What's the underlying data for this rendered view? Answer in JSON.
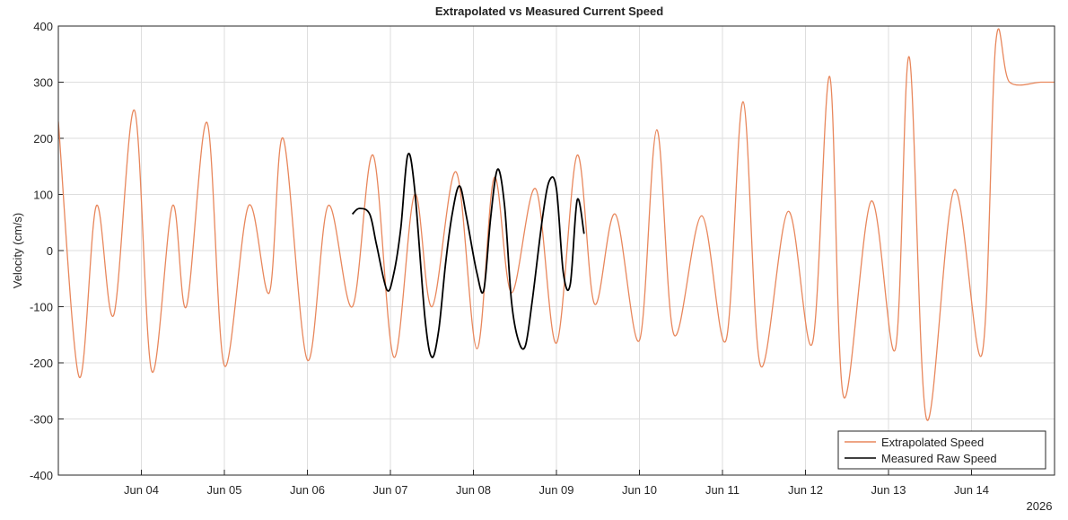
{
  "chart_data": {
    "type": "line",
    "title": "Extrapolated vs Measured Current Speed",
    "ylabel": "Velocity (cm/s)",
    "xlabel": "",
    "year_label": "2026",
    "ylim": [
      -400,
      400
    ],
    "yticks": [
      -400,
      -300,
      -200,
      -100,
      0,
      100,
      200,
      300,
      400
    ],
    "xlim": [
      "2026-06-03 00:00",
      "2026-06-15 00:00"
    ],
    "xticks": [
      "Jun 04",
      "Jun 05",
      "Jun 06",
      "Jun 07",
      "Jun 08",
      "Jun 09",
      "Jun 10",
      "Jun 11",
      "Jun 12",
      "Jun 13",
      "Jun 14"
    ],
    "grid": true,
    "legend_position": "bottom-right",
    "series": [
      {
        "name": "Extrapolated Speed",
        "color": "#e8875c",
        "x": [
          "2026-06-03 00:00",
          "2026-06-03 06:00",
          "2026-06-03 11:00",
          "2026-06-03 16:00",
          "2026-06-03 22:00",
          "2026-06-04 03:00",
          "2026-06-04 09:00",
          "2026-06-04 13:00",
          "2026-06-04 19:00",
          "2026-06-05 00:00",
          "2026-06-05 07:00",
          "2026-06-05 13:00",
          "2026-06-05 17:00",
          "2026-06-06 00:00",
          "2026-06-06 06:00",
          "2026-06-06 13:00",
          "2026-06-06 19:00",
          "2026-06-07 01:00",
          "2026-06-07 07:00",
          "2026-06-07 12:00",
          "2026-06-07 19:00",
          "2026-06-08 01:00",
          "2026-06-08 06:00",
          "2026-06-08 11:00",
          "2026-06-08 18:00",
          "2026-06-09 00:00",
          "2026-06-09 06:00",
          "2026-06-09 11:00",
          "2026-06-09 17:00",
          "2026-06-10 00:00",
          "2026-06-10 05:00",
          "2026-06-10 10:00",
          "2026-06-10 18:00",
          "2026-06-11 01:00",
          "2026-06-11 06:00",
          "2026-06-11 11:00",
          "2026-06-11 19:00",
          "2026-06-12 02:00",
          "2026-06-12 07:00",
          "2026-06-12 11:00",
          "2026-06-12 19:00",
          "2026-06-13 02:00",
          "2026-06-13 06:00",
          "2026-06-13 11:00",
          "2026-06-13 19:00",
          "2026-06-14 03:00",
          "2026-06-14 07:00",
          "2026-06-14 11:00",
          "2026-06-14 20:00",
          "2026-06-15 00:00"
        ],
        "y": [
          230,
          -225,
          80,
          -115,
          250,
          -215,
          80,
          -100,
          228,
          -205,
          80,
          -75,
          200,
          -195,
          80,
          -100,
          170,
          -190,
          100,
          -100,
          140,
          -175,
          130,
          -75,
          110,
          -165,
          170,
          -95,
          65,
          -160,
          215,
          -150,
          62,
          -160,
          265,
          -205,
          70,
          -165,
          310,
          -260,
          88,
          -175,
          345,
          -300,
          108,
          -185,
          370,
          300,
          300,
          300
        ]
      },
      {
        "name": "Measured Raw Speed",
        "color": "#000000",
        "x": [
          "2026-06-06 13:00",
          "2026-06-06 15:00",
          "2026-06-06 18:00",
          "2026-06-06 20:00",
          "2026-06-06 23:00",
          "2026-06-07 01:00",
          "2026-06-07 03:00",
          "2026-06-07 05:00",
          "2026-06-07 07:00",
          "2026-06-07 10:00",
          "2026-06-07 12:00",
          "2026-06-07 14:00",
          "2026-06-07 16:00",
          "2026-06-07 18:00",
          "2026-06-07 20:00",
          "2026-06-07 22:00",
          "2026-06-08 01:00",
          "2026-06-08 03:00",
          "2026-06-08 05:00",
          "2026-06-08 07:00",
          "2026-06-08 09:00",
          "2026-06-08 11:00",
          "2026-06-08 13:00",
          "2026-06-08 15:00",
          "2026-06-08 17:00",
          "2026-06-08 20:00",
          "2026-06-08 22:00",
          "2026-06-09 00:00",
          "2026-06-09 02:00",
          "2026-06-09 04:00",
          "2026-06-09 06:00",
          "2026-06-09 08:00"
        ],
        "y": [
          65,
          75,
          65,
          10,
          -70,
          -40,
          40,
          170,
          110,
          -120,
          -190,
          -140,
          -20,
          70,
          115,
          60,
          -40,
          -70,
          60,
          145,
          80,
          -90,
          -160,
          -170,
          -90,
          60,
          125,
          110,
          -40,
          -60,
          90,
          30
        ]
      }
    ]
  }
}
